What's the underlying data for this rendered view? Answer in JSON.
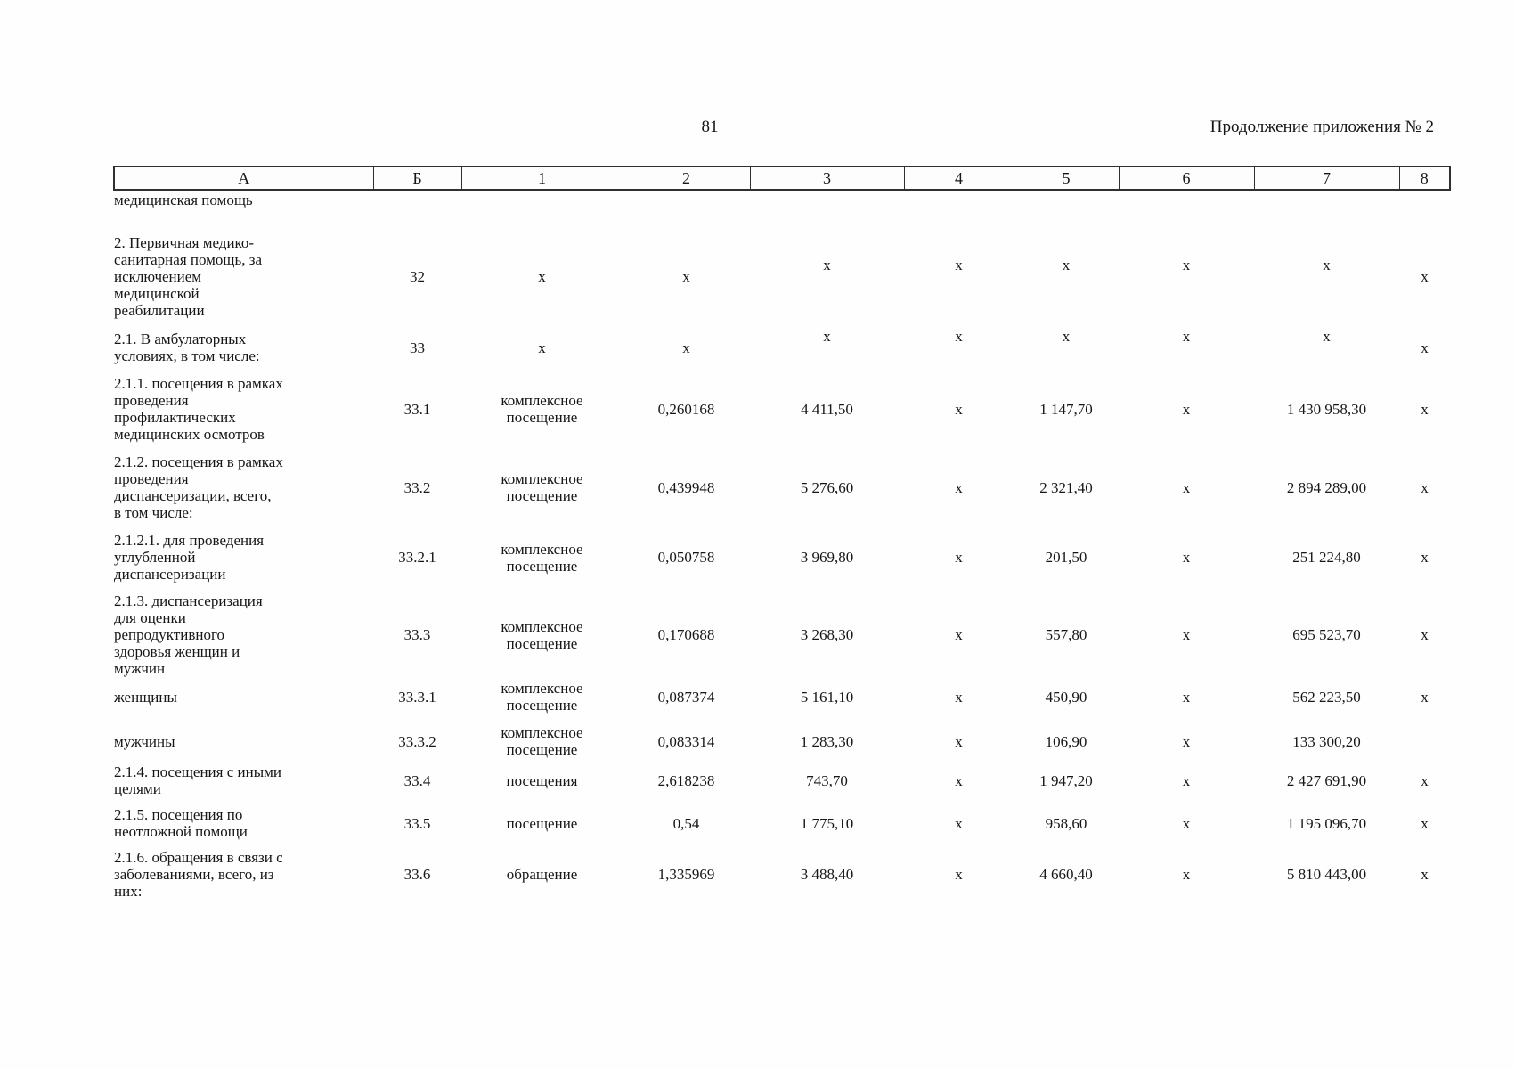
{
  "page": {
    "number": "81",
    "continuation": "Продолжение приложения № 2"
  },
  "table": {
    "columns": [
      "А",
      "Б",
      "1",
      "2",
      "3",
      "4",
      "5",
      "6",
      "7",
      "8"
    ],
    "rows": [
      {
        "cells": [
          "медицинская помощь",
          "",
          "",
          "",
          "",
          "",
          "",
          "",
          "",
          ""
        ]
      },
      {
        "cells": [
          "2. Первичная медико-\nсанитарная помощь, за\nисключением\nмедицинской\nреабилитации",
          "32",
          "х",
          "х",
          "х",
          "х",
          "х",
          "х",
          "х",
          "х"
        ]
      },
      {
        "cells": [
          "2.1. В амбулаторных\nусловиях, в том числе:",
          "33",
          "х",
          "х",
          "х",
          "х",
          "х",
          "х",
          "х",
          "х"
        ]
      },
      {
        "cells": [
          "2.1.1. посещения в рамках\nпроведения\nпрофилактических\nмедицинских осмотров",
          "33.1",
          "комплексное\nпосещение",
          "0,260168",
          "4 411,50",
          "х",
          "1 147,70",
          "х",
          "1 430 958,30",
          "х"
        ]
      },
      {
        "cells": [
          "2.1.2. посещения в рамках\nпроведения\nдиспансеризации, всего,\nв том числе:",
          "33.2",
          "комплексное\nпосещение",
          "0,439948",
          "5 276,60",
          "х",
          "2 321,40",
          "х",
          "2 894 289,00",
          "х"
        ]
      },
      {
        "cells": [
          "2.1.2.1. для проведения\nуглубленной\nдиспансеризации",
          "33.2.1",
          "комплексное\nпосещение",
          "0,050758",
          "3 969,80",
          "х",
          "201,50",
          "х",
          "251 224,80",
          "х"
        ]
      },
      {
        "cells": [
          "2.1.3. диспансеризация\nдля оценки\nрепродуктивного\nздоровья женщин и\nмужчин",
          "33.3",
          "комплексное\nпосещение",
          "0,170688",
          "3 268,30",
          "х",
          "557,80",
          "х",
          "695 523,70",
          "х"
        ]
      },
      {
        "cells": [
          "женщины",
          "33.3.1",
          "комплексное\nпосещение",
          "0,087374",
          "5 161,10",
          "х",
          "450,90",
          "х",
          "562 223,50",
          "х"
        ]
      },
      {
        "cells": [
          "мужчины",
          "33.3.2",
          "комплексное\nпосещение",
          "0,083314",
          "1 283,30",
          "х",
          "106,90",
          "х",
          "133 300,20",
          ""
        ]
      },
      {
        "cells": [
          "2.1.4. посещения с иными\nцелями",
          "33.4",
          "посещения",
          "2,618238",
          "743,70",
          "х",
          "1 947,20",
          "х",
          "2 427 691,90",
          "х"
        ]
      },
      {
        "cells": [
          "2.1.5. посещения по\nнеотложной помощи",
          "33.5",
          "посещение",
          "0,54",
          "1 775,10",
          "х",
          "958,60",
          "х",
          "1 195 096,70",
          "х"
        ]
      },
      {
        "cells": [
          "2.1.6. обращения в связи с\nзаболеваниями, всего, из\nних:",
          "33.6",
          "обращение",
          "1,335969",
          "3 488,40",
          "х",
          "4 660,40",
          "х",
          "5 810 443,00",
          "х"
        ]
      }
    ]
  }
}
